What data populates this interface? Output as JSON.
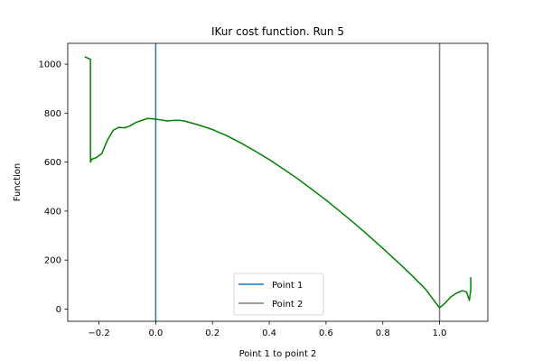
{
  "chart_data": {
    "type": "line",
    "title": "IKur cost function. Run 5",
    "xlabel": "Point 1 to point 2",
    "ylabel": "Function",
    "xlim": [
      -0.31,
      1.17
    ],
    "ylim": [
      -50,
      1085
    ],
    "xticks": [
      -0.2,
      0.0,
      0.2,
      0.4,
      0.6,
      0.8,
      1.0
    ],
    "xtick_labels": [
      "−0.2",
      "0.0",
      "0.2",
      "0.4",
      "0.6",
      "0.8",
      "1.0"
    ],
    "yticks": [
      0,
      200,
      400,
      600,
      800,
      1000
    ],
    "ytick_labels": [
      "0",
      "200",
      "400",
      "600",
      "800",
      "1000"
    ],
    "grid": false,
    "legend_position": "bottom-center",
    "series": [
      {
        "color": "#008000",
        "x": [
          -0.25,
          -0.23,
          -0.23,
          -0.225,
          -0.21,
          -0.19,
          -0.17,
          -0.15,
          -0.13,
          -0.11,
          -0.09,
          -0.07,
          -0.05,
          -0.03,
          -0.01,
          0.0,
          0.02,
          0.04,
          0.06,
          0.08,
          0.1,
          0.15,
          0.2,
          0.25,
          0.3,
          0.35,
          0.4,
          0.45,
          0.5,
          0.55,
          0.6,
          0.65,
          0.7,
          0.75,
          0.8,
          0.85,
          0.9,
          0.95,
          1.0,
          1.02,
          1.04,
          1.06,
          1.08,
          1.095,
          1.105,
          1.11,
          1.11
        ],
        "y": [
          1030,
          1020,
          600,
          612,
          618,
          635,
          690,
          730,
          742,
          740,
          748,
          762,
          770,
          778,
          777,
          775,
          772,
          768,
          770,
          771,
          768,
          752,
          733,
          708,
          678,
          645,
          610,
          572,
          532,
          489,
          445,
          398,
          350,
          300,
          248,
          195,
          140,
          82,
          5,
          25,
          50,
          65,
          75,
          70,
          35,
          80,
          130
        ]
      }
    ],
    "vlines": [
      {
        "name": "Point 1",
        "x": 0.0,
        "color": "#1f77b4"
      },
      {
        "name": "Point 2",
        "x": 1.0,
        "color": "#7f7f7f"
      }
    ]
  }
}
